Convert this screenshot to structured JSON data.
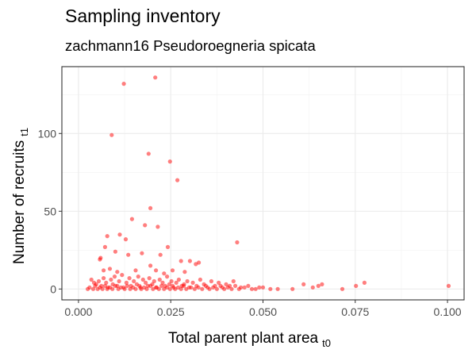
{
  "chart_data": {
    "type": "scatter",
    "title": "Sampling inventory",
    "subtitle": "zachmann16 Pseudoroegneria spicata",
    "xlabel": "Total parent plant area",
    "xlabel_sub": "t0",
    "ylabel": "Number of recruits",
    "ylabel_sub": "t1",
    "xlim": [
      -0.0045,
      0.1045
    ],
    "ylim": [
      -7,
      143
    ],
    "x_ticks": [
      0.0,
      0.025,
      0.05,
      0.075,
      0.1
    ],
    "x_tick_labels": [
      "0.000",
      "0.025",
      "0.050",
      "0.075",
      "0.100"
    ],
    "y_ticks": [
      0,
      50,
      100
    ],
    "y_tick_labels": [
      "0",
      "50",
      "100"
    ],
    "grid": true,
    "point_color": "#FF0000",
    "point_opacity": 0.5,
    "points": [
      [
        0.0123,
        132
      ],
      [
        0.0208,
        136
      ],
      [
        0.009,
        99
      ],
      [
        0.019,
        87
      ],
      [
        0.0248,
        82
      ],
      [
        0.0268,
        70
      ],
      [
        0.0195,
        52
      ],
      [
        0.0145,
        45
      ],
      [
        0.018,
        41
      ],
      [
        0.0215,
        40
      ],
      [
        0.0078,
        34
      ],
      [
        0.0112,
        35
      ],
      [
        0.0128,
        32
      ],
      [
        0.0242,
        27
      ],
      [
        0.043,
        30
      ],
      [
        0.0058,
        19
      ],
      [
        0.006,
        20
      ],
      [
        0.0072,
        27
      ],
      [
        0.01,
        24
      ],
      [
        0.0135,
        22
      ],
      [
        0.0172,
        23
      ],
      [
        0.0222,
        22
      ],
      [
        0.0278,
        18
      ],
      [
        0.0302,
        18
      ],
      [
        0.0318,
        16
      ],
      [
        0.0068,
        12
      ],
      [
        0.0085,
        13
      ],
      [
        0.0105,
        11
      ],
      [
        0.0155,
        12
      ],
      [
        0.0195,
        15
      ],
      [
        0.021,
        12
      ],
      [
        0.0232,
        10
      ],
      [
        0.0255,
        12
      ],
      [
        0.0288,
        11
      ],
      [
        0.0326,
        17
      ],
      [
        0.0035,
        6
      ],
      [
        0.0042,
        4
      ],
      [
        0.0048,
        3
      ],
      [
        0.0055,
        5
      ],
      [
        0.0062,
        2
      ],
      [
        0.0068,
        7
      ],
      [
        0.0075,
        4
      ],
      [
        0.008,
        1
      ],
      [
        0.0088,
        6
      ],
      [
        0.0093,
        3
      ],
      [
        0.0098,
        8
      ],
      [
        0.0105,
        2
      ],
      [
        0.011,
        5
      ],
      [
        0.0118,
        9
      ],
      [
        0.0122,
        1
      ],
      [
        0.013,
        4
      ],
      [
        0.0138,
        7
      ],
      [
        0.0142,
        2
      ],
      [
        0.015,
        5
      ],
      [
        0.0158,
        3
      ],
      [
        0.0162,
        8
      ],
      [
        0.0168,
        1
      ],
      [
        0.0175,
        6
      ],
      [
        0.0182,
        4
      ],
      [
        0.0188,
        2
      ],
      [
        0.0192,
        7
      ],
      [
        0.02,
        3
      ],
      [
        0.0205,
        5
      ],
      [
        0.0212,
        1
      ],
      [
        0.022,
        6
      ],
      [
        0.0228,
        4
      ],
      [
        0.0235,
        2
      ],
      [
        0.024,
        8
      ],
      [
        0.0246,
        3
      ],
      [
        0.0252,
        5
      ],
      [
        0.0258,
        1
      ],
      [
        0.0265,
        4
      ],
      [
        0.0272,
        6
      ],
      [
        0.028,
        2
      ],
      [
        0.0286,
        3
      ],
      [
        0.0295,
        5
      ],
      [
        0.03,
        1
      ],
      [
        0.031,
        4
      ],
      [
        0.032,
        2
      ],
      [
        0.033,
        6
      ],
      [
        0.034,
        3
      ],
      [
        0.035,
        1
      ],
      [
        0.036,
        5
      ],
      [
        0.037,
        2
      ],
      [
        0.038,
        4
      ],
      [
        0.039,
        1
      ],
      [
        0.04,
        3
      ],
      [
        0.041,
        2
      ],
      [
        0.042,
        5
      ],
      [
        0.044,
        1
      ],
      [
        0.046,
        2
      ],
      [
        0.048,
        0
      ],
      [
        0.05,
        1
      ],
      [
        0.052,
        0
      ],
      [
        0.054,
        0
      ],
      [
        0.0025,
        0
      ],
      [
        0.003,
        1
      ],
      [
        0.004,
        0
      ],
      [
        0.0045,
        2
      ],
      [
        0.0052,
        0
      ],
      [
        0.0058,
        1
      ],
      [
        0.0065,
        0
      ],
      [
        0.0072,
        2
      ],
      [
        0.0078,
        0
      ],
      [
        0.0085,
        1
      ],
      [
        0.0092,
        0
      ],
      [
        0.01,
        2
      ],
      [
        0.0108,
        0
      ],
      [
        0.0115,
        1
      ],
      [
        0.0125,
        0
      ],
      [
        0.0132,
        2
      ],
      [
        0.014,
        0
      ],
      [
        0.0148,
        1
      ],
      [
        0.0155,
        0
      ],
      [
        0.0165,
        2
      ],
      [
        0.017,
        0
      ],
      [
        0.0178,
        1
      ],
      [
        0.0185,
        0
      ],
      [
        0.0195,
        2
      ],
      [
        0.0202,
        0
      ],
      [
        0.021,
        1
      ],
      [
        0.0218,
        0
      ],
      [
        0.0225,
        2
      ],
      [
        0.0232,
        0
      ],
      [
        0.024,
        1
      ],
      [
        0.0248,
        0
      ],
      [
        0.0255,
        2
      ],
      [
        0.0262,
        0
      ],
      [
        0.027,
        1
      ],
      [
        0.0278,
        0
      ],
      [
        0.0285,
        2
      ],
      [
        0.0292,
        0
      ],
      [
        0.0305,
        1
      ],
      [
        0.0315,
        0
      ],
      [
        0.0325,
        1
      ],
      [
        0.0335,
        0
      ],
      [
        0.0345,
        2
      ],
      [
        0.0355,
        0
      ],
      [
        0.0365,
        1
      ],
      [
        0.0375,
        0
      ],
      [
        0.0385,
        2
      ],
      [
        0.0395,
        0
      ],
      [
        0.0405,
        1
      ],
      [
        0.0415,
        0
      ],
      [
        0.0425,
        2
      ],
      [
        0.0435,
        0
      ],
      [
        0.045,
        1
      ],
      [
        0.047,
        0
      ],
      [
        0.049,
        1
      ],
      [
        0.058,
        0
      ],
      [
        0.061,
        3
      ],
      [
        0.0635,
        1
      ],
      [
        0.065,
        2
      ],
      [
        0.066,
        3
      ],
      [
        0.0715,
        0
      ],
      [
        0.0752,
        2
      ],
      [
        0.0775,
        4
      ],
      [
        0.1003,
        2
      ]
    ]
  }
}
